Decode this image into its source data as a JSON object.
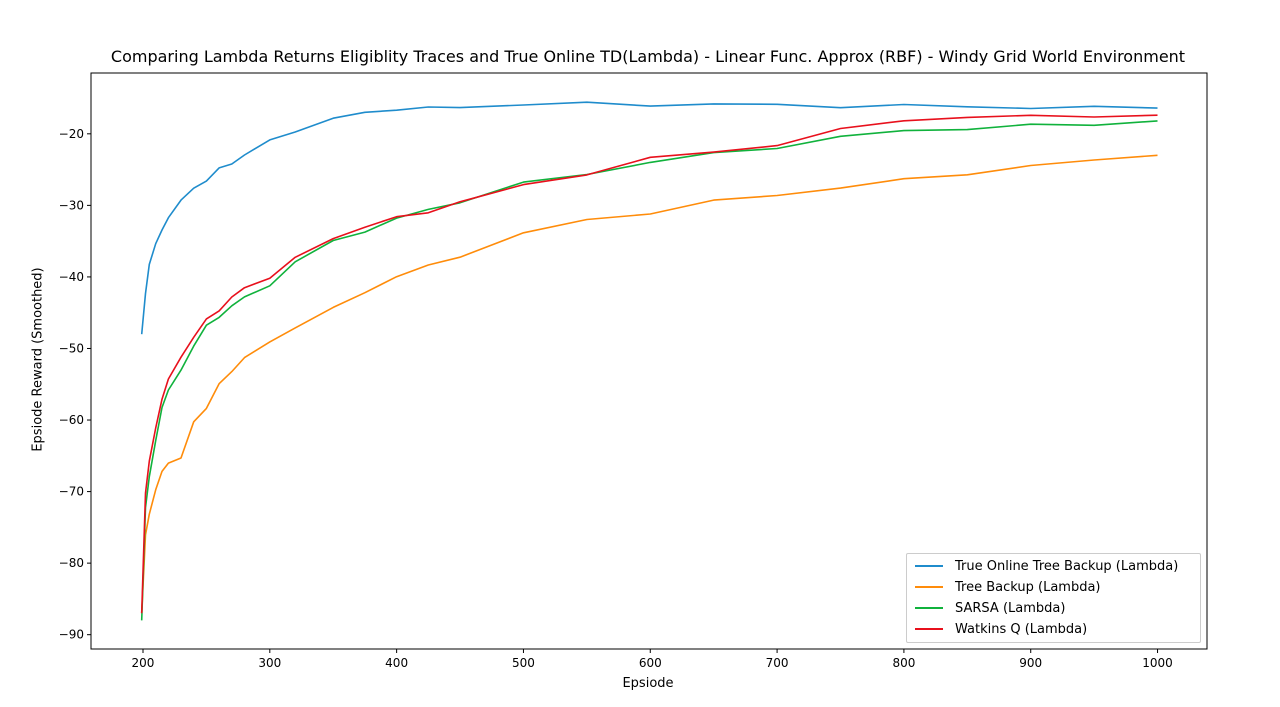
{
  "chart_data": {
    "type": "line",
    "title": "Comparing Lambda Returns Eligiblity Traces and True Online TD(Lambda) - Linear Func. Approx (RBF) - Windy Grid World Environment",
    "xlabel": "Epsiode",
    "ylabel": "Epsiode Reward (Smoothed)",
    "xlim": [
      159,
      1039
    ],
    "ylim": [
      -92,
      -11.5
    ],
    "xticks": [
      200,
      300,
      400,
      500,
      600,
      700,
      800,
      900,
      1000
    ],
    "yticks": [
      -90,
      -80,
      -70,
      -60,
      -50,
      -40,
      -30,
      -20
    ],
    "grid": false,
    "legend_position": "lower-right",
    "x": [
      199,
      202,
      205,
      210,
      215,
      220,
      230,
      240,
      250,
      260,
      270,
      280,
      300,
      320,
      350,
      375,
      400,
      425,
      450,
      500,
      550,
      600,
      650,
      700,
      750,
      800,
      850,
      900,
      950,
      1000
    ],
    "series": [
      {
        "name": "True Online Tree Backup (Lambda)",
        "color": "#1f8ccc",
        "values": [
          -48,
          -42.5,
          -38,
          -35.5,
          -33.5,
          -31.5,
          -29.5,
          -27.5,
          -26.5,
          -25,
          -24,
          -23,
          -21,
          -19.5,
          -18,
          -17,
          -16.5,
          -16.5,
          -16.2,
          -15.9,
          -15.8,
          -15.9,
          -15.9,
          -16.0,
          -16.1,
          -16.1,
          -16.2,
          -16.3,
          -16.4,
          -16.4
        ]
      },
      {
        "name": "Tree Backup (Lambda)",
        "color": "#ff8c0a",
        "values": [
          -87,
          -76,
          -73,
          -70,
          -67,
          -66,
          -65.5,
          -60,
          -58.5,
          -55,
          -53,
          -51.5,
          -49,
          -47,
          -44.5,
          -42,
          -40,
          -38.5,
          -37,
          -34,
          -32,
          -31,
          -29.5,
          -28.5,
          -27.5,
          -26.5,
          -25.5,
          -24.5,
          -23.8,
          -23.0
        ]
      },
      {
        "name": "SARSA (Lambda)",
        "color": "#10b23c",
        "values": [
          -88,
          -72,
          -68,
          -63,
          -58,
          -56,
          -53,
          -49.5,
          -47,
          -45.5,
          -44,
          -43,
          -41,
          -38,
          -35,
          -33.5,
          -32,
          -30.5,
          -29.5,
          -27,
          -25.5,
          -24,
          -22.8,
          -21.8,
          -20.5,
          -19.6,
          -19.2,
          -18.9,
          -18.7,
          -18.2
        ]
      },
      {
        "name": "Watkins Q (Lambda)",
        "color": "#e8101c",
        "values": [
          -87,
          -70,
          -66,
          -61,
          -57,
          -54.5,
          -51,
          -48.5,
          -46,
          -44.5,
          -43,
          -41.5,
          -40,
          -37.5,
          -34.5,
          -33,
          -31.8,
          -30.8,
          -29.6,
          -27.2,
          -25.5,
          -23.5,
          -22.5,
          -21.5,
          -19.5,
          -18,
          -17.7,
          -17.6,
          -17.4,
          -17.4
        ]
      }
    ]
  }
}
